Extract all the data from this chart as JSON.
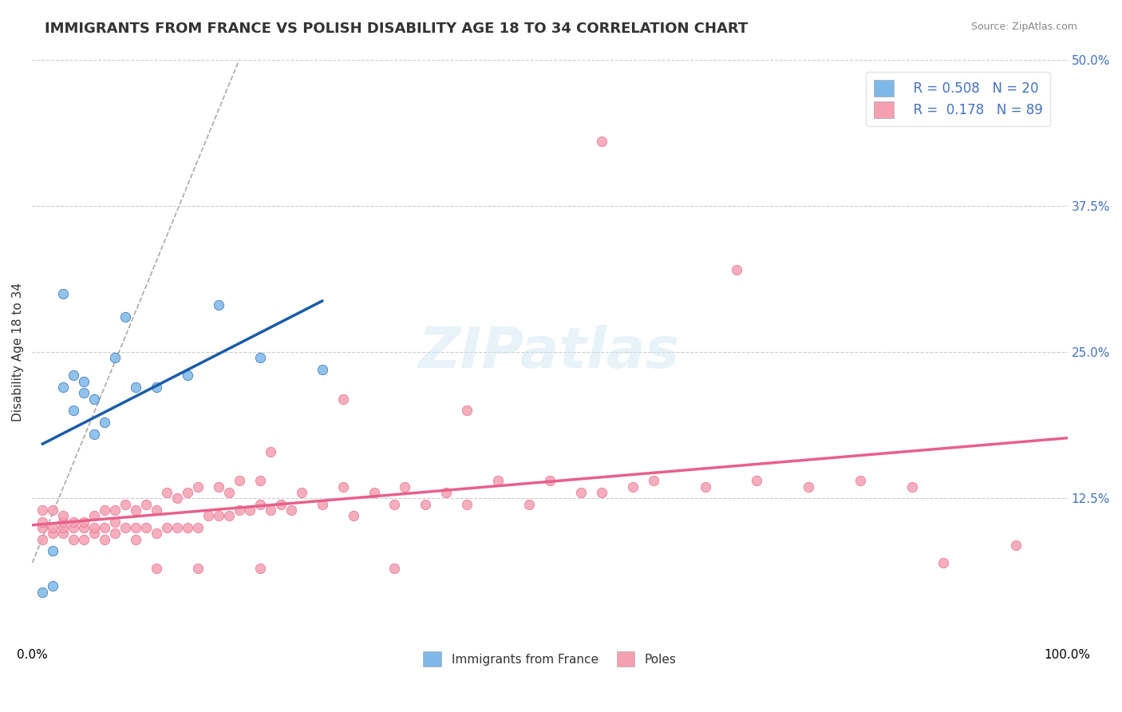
{
  "title": "IMMIGRANTS FROM FRANCE VS POLISH DISABILITY AGE 18 TO 34 CORRELATION CHART",
  "source": "Source: ZipAtlas.com",
  "xlabel": "",
  "ylabel": "Disability Age 18 to 34",
  "xlim": [
    0,
    1.0
  ],
  "ylim": [
    0,
    0.5
  ],
  "yticks": [
    0.0,
    0.125,
    0.25,
    0.375,
    0.5
  ],
  "ytick_labels": [
    "",
    "12.5%",
    "25.0%",
    "37.5%",
    "50.0%"
  ],
  "xticks": [
    0.0,
    0.25,
    0.5,
    0.75,
    1.0
  ],
  "xtick_labels": [
    "0.0%",
    "",
    "",
    "",
    "100.0%"
  ],
  "legend_r_blue": "R = 0.508",
  "legend_n_blue": "N = 20",
  "legend_r_pink": "R =  0.178",
  "legend_n_pink": "N = 89",
  "legend_label_blue": "Immigrants from France",
  "legend_label_pink": "Poles",
  "blue_color": "#7EB8E8",
  "pink_color": "#F4A0B0",
  "blue_line_color": "#1A5CA8",
  "pink_line_color": "#E8608A",
  "dashed_line_color": "#AAAAAA",
  "blue_scatter_x": [
    0.01,
    0.02,
    0.02,
    0.03,
    0.03,
    0.04,
    0.04,
    0.05,
    0.05,
    0.06,
    0.06,
    0.07,
    0.08,
    0.09,
    0.1,
    0.12,
    0.15,
    0.18,
    0.22,
    0.28
  ],
  "blue_scatter_y": [
    0.045,
    0.05,
    0.08,
    0.22,
    0.3,
    0.2,
    0.23,
    0.215,
    0.225,
    0.18,
    0.21,
    0.19,
    0.245,
    0.28,
    0.22,
    0.22,
    0.23,
    0.29,
    0.245,
    0.235
  ],
  "pink_scatter_x": [
    0.01,
    0.01,
    0.01,
    0.01,
    0.02,
    0.02,
    0.02,
    0.03,
    0.03,
    0.03,
    0.03,
    0.04,
    0.04,
    0.04,
    0.05,
    0.05,
    0.05,
    0.06,
    0.06,
    0.06,
    0.07,
    0.07,
    0.07,
    0.08,
    0.08,
    0.08,
    0.09,
    0.09,
    0.1,
    0.1,
    0.1,
    0.11,
    0.11,
    0.12,
    0.12,
    0.13,
    0.13,
    0.14,
    0.14,
    0.15,
    0.15,
    0.16,
    0.16,
    0.17,
    0.18,
    0.18,
    0.19,
    0.19,
    0.2,
    0.2,
    0.21,
    0.22,
    0.22,
    0.23,
    0.24,
    0.25,
    0.26,
    0.28,
    0.3,
    0.31,
    0.33,
    0.35,
    0.36,
    0.38,
    0.4,
    0.42,
    0.45,
    0.48,
    0.5,
    0.53,
    0.55,
    0.58,
    0.6,
    0.65,
    0.7,
    0.75,
    0.8,
    0.85,
    0.55,
    0.68,
    0.42,
    0.23,
    0.3,
    0.95,
    0.88,
    0.12,
    0.16,
    0.22,
    0.35
  ],
  "pink_scatter_y": [
    0.09,
    0.1,
    0.105,
    0.115,
    0.095,
    0.1,
    0.115,
    0.095,
    0.1,
    0.105,
    0.11,
    0.09,
    0.1,
    0.105,
    0.09,
    0.1,
    0.105,
    0.095,
    0.1,
    0.11,
    0.09,
    0.1,
    0.115,
    0.095,
    0.105,
    0.115,
    0.1,
    0.12,
    0.09,
    0.1,
    0.115,
    0.1,
    0.12,
    0.095,
    0.115,
    0.1,
    0.13,
    0.1,
    0.125,
    0.1,
    0.13,
    0.1,
    0.135,
    0.11,
    0.11,
    0.135,
    0.11,
    0.13,
    0.115,
    0.14,
    0.115,
    0.12,
    0.14,
    0.115,
    0.12,
    0.115,
    0.13,
    0.12,
    0.135,
    0.11,
    0.13,
    0.12,
    0.135,
    0.12,
    0.13,
    0.12,
    0.14,
    0.12,
    0.14,
    0.13,
    0.13,
    0.135,
    0.14,
    0.135,
    0.14,
    0.135,
    0.14,
    0.135,
    0.43,
    0.32,
    0.2,
    0.165,
    0.21,
    0.085,
    0.07,
    0.065,
    0.065,
    0.065,
    0.065
  ],
  "background_color": "#FFFFFF",
  "watermark_text": "ZIPatlas",
  "title_fontsize": 13,
  "axis_label_fontsize": 11
}
